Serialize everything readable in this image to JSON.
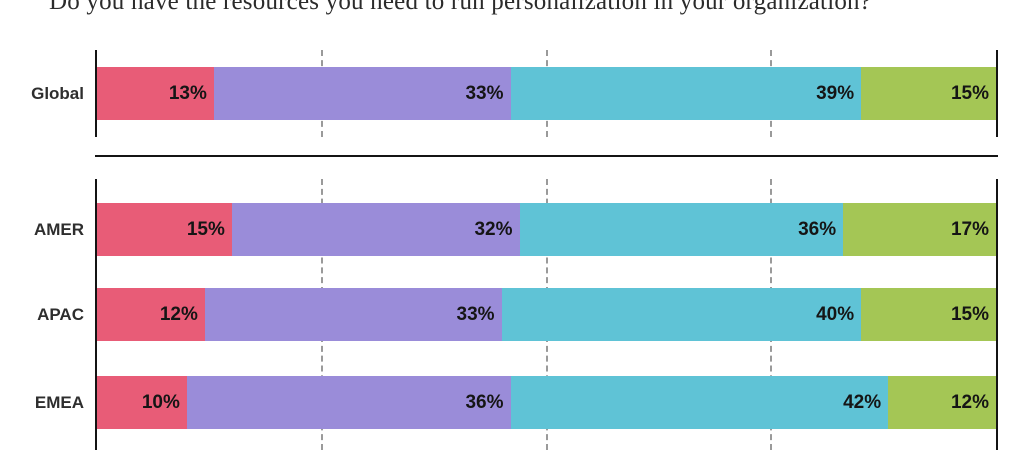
{
  "title": "Do you have the resources you need to run personalization in your organization?",
  "chart_data": {
    "type": "bar",
    "variant": "stacked-horizontal",
    "unit": "%",
    "xlim": [
      0,
      100
    ],
    "gridlines_at": [
      25,
      50,
      75
    ],
    "grid_style": "dashed",
    "legend": "none",
    "categories": [
      "Global",
      "AMER",
      "APAC",
      "EMEA"
    ],
    "groups": [
      [
        "Global"
      ],
      [
        "AMER",
        "APAC",
        "EMEA"
      ]
    ],
    "series": [
      {
        "name": "pink-segment",
        "color": "#E85C77",
        "values": [
          13,
          15,
          12,
          10
        ]
      },
      {
        "name": "purple-segment",
        "color": "#9A8CD9",
        "values": [
          33,
          32,
          33,
          36
        ]
      },
      {
        "name": "teal-segment",
        "color": "#5FC3D6",
        "values": [
          39,
          36,
          40,
          42
        ]
      },
      {
        "name": "green-segment",
        "color": "#A4C655",
        "values": [
          15,
          17,
          15,
          12
        ]
      }
    ],
    "value_label_format": "{value}%"
  },
  "style": {
    "axis_color": "#141414",
    "gridline_color": "#9a9a9a",
    "row_label_color": "#2e2e2e",
    "value_label_color": "#151515",
    "background": "#ffffff"
  }
}
